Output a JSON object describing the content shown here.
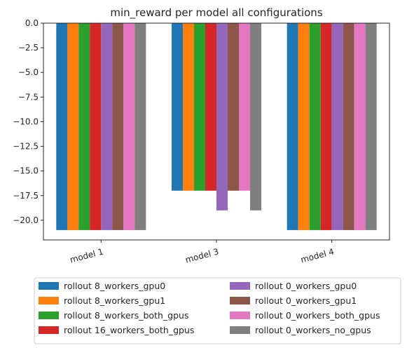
{
  "chart_data": {
    "type": "bar",
    "title": "min_reward per model all configurations",
    "xlabel": "",
    "ylabel": "",
    "categories": [
      "model 1",
      "model 3",
      "model 4"
    ],
    "ylim": [
      -22.0,
      0.0
    ],
    "yticks": [
      0.0,
      -2.5,
      -5.0,
      -7.5,
      -10.0,
      -12.5,
      -15.0,
      -17.5,
      -20.0
    ],
    "ytick_labels": [
      "0.0",
      "−2.5",
      "−5.0",
      "−7.5",
      "−10.0",
      "−12.5",
      "−15.0",
      "−17.5",
      "−20.0"
    ],
    "grid": false,
    "legend_position": "below",
    "series": [
      {
        "name": "rollout 8_workers_gpu0",
        "color": "#1f77b4",
        "values": [
          -21,
          -17,
          -21
        ]
      },
      {
        "name": "rollout 8_workers_gpu1",
        "color": "#ff7f0e",
        "values": [
          -21,
          -17,
          -21
        ]
      },
      {
        "name": "rollout 8_workers_both_gpus",
        "color": "#2ca02c",
        "values": [
          -21,
          -17,
          -21
        ]
      },
      {
        "name": "rollout 16_workers_both_gpus",
        "color": "#d62728",
        "values": [
          -21,
          -17,
          -21
        ]
      },
      {
        "name": "rollout 0_workers_gpu0",
        "color": "#9467bd",
        "values": [
          -21,
          -19,
          -21
        ]
      },
      {
        "name": "rollout 0_workers_gpu1",
        "color": "#8c564b",
        "values": [
          -21,
          -17,
          -21
        ]
      },
      {
        "name": "rollout 0_workers_both_gpus",
        "color": "#e377c2",
        "values": [
          -21,
          -17,
          -21
        ]
      },
      {
        "name": "rollout 0_workers_no_gpus",
        "color": "#7f7f7f",
        "values": [
          -21,
          -19,
          -21
        ]
      }
    ]
  }
}
